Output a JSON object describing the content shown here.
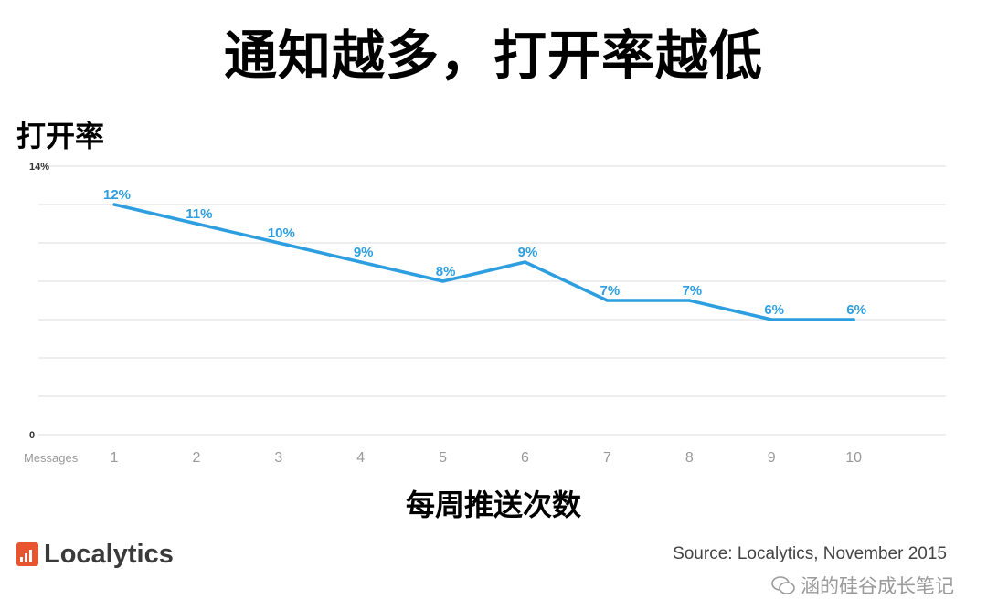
{
  "title": "通知越多，打开率越低",
  "source": "Source: Localytics, November 2015",
  "brand": "Localytics",
  "watermark": "涵的硅谷成长笔记",
  "colors": {
    "line": "#2d9ee0",
    "grid": "#e3e3e3",
    "logo": "#e8542d"
  },
  "chart_data": {
    "type": "line",
    "ylabel": "打开率",
    "xlabel": "每周推送次数",
    "x_prefix_label": "Messages",
    "categories": [
      "1",
      "2",
      "3",
      "4",
      "5",
      "6",
      "7",
      "8",
      "9",
      "10"
    ],
    "values": [
      12,
      11,
      10,
      9,
      8,
      9,
      7,
      7,
      6,
      6
    ],
    "data_labels": [
      "12%",
      "11%",
      "10%",
      "9%",
      "8%",
      "9%",
      "7%",
      "7%",
      "6%",
      "6%"
    ],
    "ylim": [
      0,
      14
    ],
    "y_tick_labels": [
      {
        "value": 14,
        "label": "14%"
      },
      {
        "value": 0,
        "label": "0"
      }
    ],
    "gridlines": [
      0,
      2,
      4,
      6,
      8,
      10,
      12,
      14
    ],
    "grid": true
  }
}
